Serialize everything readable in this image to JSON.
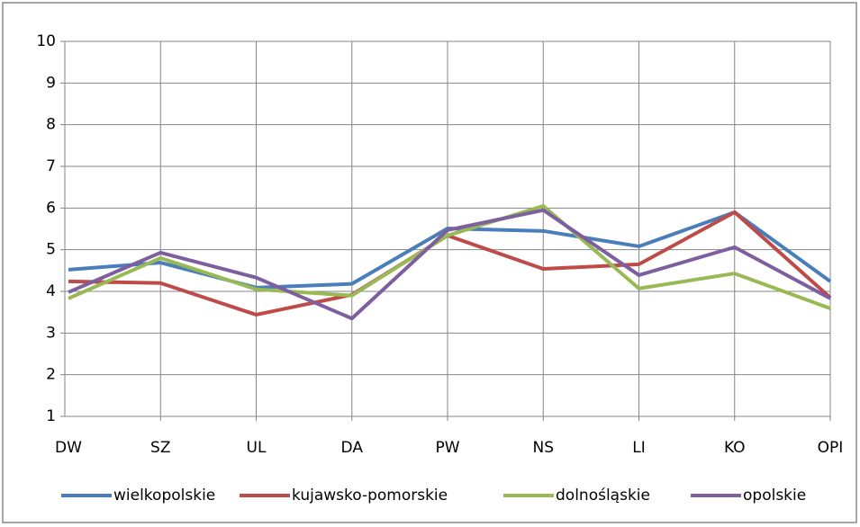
{
  "chart_data": {
    "type": "line",
    "categories": [
      "DW",
      "SZ",
      "UL",
      "DA",
      "PW",
      "NS",
      "LI",
      "KO",
      "OPI"
    ],
    "series": [
      {
        "name": "wielkopolskie",
        "color": "#4a7ebb",
        "values": [
          4.52,
          4.69,
          4.09,
          4.18,
          5.51,
          5.45,
          5.08,
          5.9,
          4.24
        ]
      },
      {
        "name": "kujawsko-pomorskie",
        "color": "#be4b48",
        "values": [
          4.24,
          4.2,
          3.44,
          3.92,
          5.34,
          4.54,
          4.65,
          5.9,
          3.85
        ]
      },
      {
        "name": "dolnośląskie",
        "color": "#98b954",
        "values": [
          3.83,
          4.8,
          4.05,
          3.9,
          5.34,
          6.05,
          4.07,
          4.43,
          3.59
        ]
      },
      {
        "name": "opolskie",
        "color": "#7d5fa0",
        "values": [
          3.98,
          4.93,
          4.33,
          3.35,
          5.47,
          5.95,
          4.39,
          5.06,
          3.83
        ]
      }
    ],
    "ylim": [
      1,
      10
    ],
    "yticks": [
      1,
      2,
      3,
      4,
      5,
      6,
      7,
      8,
      9,
      10
    ],
    "grid": true,
    "legend": "bottom"
  }
}
